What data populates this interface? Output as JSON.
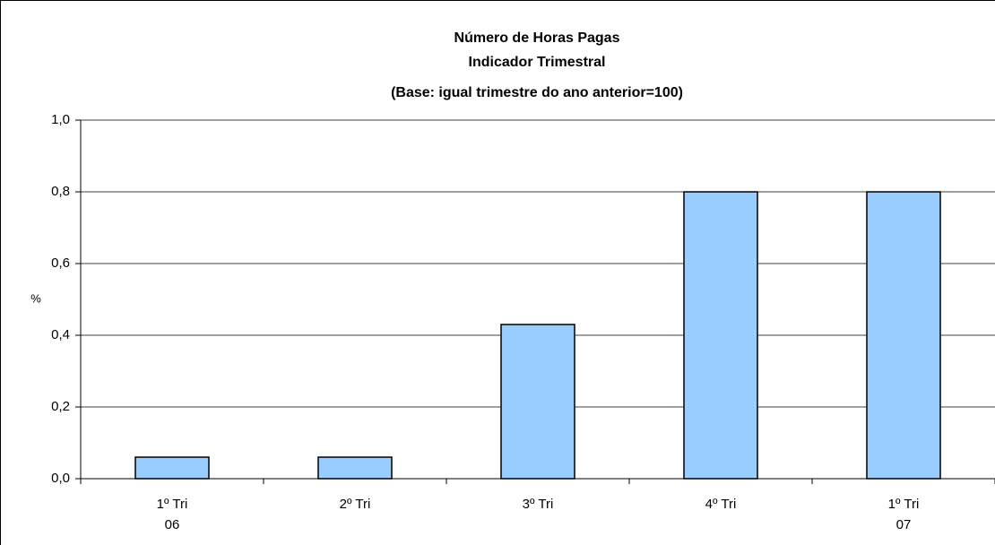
{
  "chart_data": {
    "type": "bar",
    "title": [
      "Número de Horas Pagas",
      "Indicador Trimestral",
      "(Base: igual trimestre do ano anterior=100)"
    ],
    "y_label": "%",
    "categories": [
      [
        "1º Tri",
        "06"
      ],
      [
        "2º Tri"
      ],
      [
        "3º Tri"
      ],
      [
        "4º Tri"
      ],
      [
        "1º Tri",
        "07"
      ]
    ],
    "values": [
      0.06,
      0.06,
      0.43,
      0.8,
      0.8
    ],
    "color": "#99ccff",
    "ylim": [
      0,
      1
    ],
    "yticks": [
      {
        "value": 0,
        "label": "0,0"
      },
      {
        "value": 0.2,
        "label": "0,2"
      },
      {
        "value": 0.4,
        "label": "0,4"
      },
      {
        "value": 0.6,
        "label": "0,6"
      },
      {
        "value": 0.8,
        "label": "0,8"
      },
      {
        "value": 1,
        "label": "1,0"
      }
    ],
    "grid": true
  }
}
